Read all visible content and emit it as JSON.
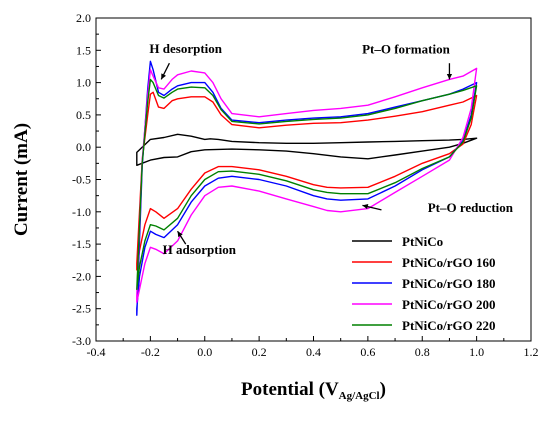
{
  "chart_data": {
    "type": "line",
    "xlabel": "Potential (V",
    "xlabel_sub": "Ag/AgCl",
    "xlabel_close": ")",
    "ylabel": "Current (mA)",
    "xlim": [
      -0.4,
      1.2
    ],
    "ylim": [
      -3.0,
      2.0
    ],
    "x_ticks": [
      "-0.4",
      "-0.2",
      "0.0",
      "0.2",
      "0.4",
      "0.6",
      "0.8",
      "1.0",
      "1.2"
    ],
    "y_ticks": [
      "2.0",
      "1.5",
      "1.0",
      "0.5",
      "0.0",
      "-0.5",
      "-1.0",
      "-1.5",
      "-2.0",
      "-2.5",
      "-3.0"
    ],
    "grid": false,
    "legend_position": "bottom-right",
    "annotations": [
      {
        "text": "H desorption",
        "x": -0.07,
        "y": 1.46
      },
      {
        "text": "Pt–O formation",
        "x": 0.74,
        "y": 1.45
      },
      {
        "text": "Pt–O reduction",
        "x": 0.82,
        "y": -1.0
      },
      {
        "text": "H adsorption",
        "x": -0.02,
        "y": -1.65
      }
    ],
    "series": [
      {
        "name": "PtNiCo",
        "color": "#000000",
        "anodic": {
          "x": [
            -0.25,
            -0.2,
            -0.15,
            -0.1,
            -0.05,
            0.0,
            0.02,
            0.05,
            0.1,
            0.2,
            0.3,
            0.4,
            0.5,
            0.6,
            0.7,
            0.8,
            0.9,
            0.95,
            1.0
          ],
          "y": [
            -0.08,
            0.12,
            0.15,
            0.2,
            0.17,
            0.12,
            0.13,
            0.12,
            0.09,
            0.07,
            0.06,
            0.06,
            0.07,
            0.08,
            0.09,
            0.1,
            0.11,
            0.12,
            0.14
          ]
        },
        "cathodic": {
          "x": [
            1.0,
            0.95,
            0.9,
            0.8,
            0.7,
            0.6,
            0.5,
            0.4,
            0.3,
            0.2,
            0.1,
            0.0,
            -0.05,
            -0.1,
            -0.15,
            -0.2,
            -0.25
          ],
          "y": [
            0.14,
            0.06,
            0.0,
            -0.06,
            -0.12,
            -0.18,
            -0.15,
            -0.1,
            -0.06,
            -0.04,
            -0.03,
            -0.04,
            -0.07,
            -0.15,
            -0.16,
            -0.2,
            -0.28
          ]
        }
      },
      {
        "name": "PtNiCo/rGO 160",
        "color": "#ff0000",
        "anodic": {
          "x": [
            -0.25,
            -0.23,
            -0.21,
            -0.2,
            -0.19,
            -0.17,
            -0.15,
            -0.12,
            -0.1,
            -0.05,
            0.0,
            0.03,
            0.06,
            0.1,
            0.2,
            0.3,
            0.4,
            0.5,
            0.6,
            0.7,
            0.8,
            0.9,
            0.95,
            1.0
          ],
          "y": [
            -1.8,
            -0.2,
            0.5,
            0.82,
            0.85,
            0.62,
            0.6,
            0.72,
            0.75,
            0.78,
            0.78,
            0.7,
            0.5,
            0.35,
            0.3,
            0.34,
            0.37,
            0.38,
            0.42,
            0.48,
            0.55,
            0.65,
            0.7,
            0.8
          ]
        },
        "cathodic": {
          "x": [
            1.0,
            0.98,
            0.95,
            0.9,
            0.8,
            0.7,
            0.6,
            0.5,
            0.45,
            0.4,
            0.3,
            0.2,
            0.1,
            0.05,
            0.0,
            -0.05,
            -0.1,
            -0.15,
            -0.18,
            -0.2,
            -0.22,
            -0.24,
            -0.25
          ],
          "y": [
            0.8,
            0.35,
            0.05,
            -0.1,
            -0.25,
            -0.45,
            -0.62,
            -0.63,
            -0.62,
            -0.58,
            -0.45,
            -0.35,
            -0.3,
            -0.3,
            -0.4,
            -0.65,
            -0.95,
            -1.1,
            -1.0,
            -0.95,
            -1.2,
            -1.6,
            -1.9
          ]
        }
      },
      {
        "name": "PtNiCo/rGO 180",
        "color": "#0000ff",
        "anodic": {
          "x": [
            -0.25,
            -0.23,
            -0.21,
            -0.2,
            -0.19,
            -0.17,
            -0.15,
            -0.12,
            -0.1,
            -0.05,
            0.0,
            0.03,
            0.06,
            0.1,
            0.2,
            0.3,
            0.4,
            0.5,
            0.6,
            0.7,
            0.8,
            0.9,
            0.95,
            1.0
          ],
          "y": [
            -2.6,
            -0.3,
            0.9,
            1.33,
            1.2,
            0.85,
            0.8,
            0.9,
            0.95,
            1.0,
            1.0,
            0.85,
            0.6,
            0.42,
            0.38,
            0.42,
            0.45,
            0.47,
            0.52,
            0.62,
            0.72,
            0.82,
            0.9,
            1.0
          ]
        },
        "cathodic": {
          "x": [
            1.0,
            0.98,
            0.95,
            0.9,
            0.8,
            0.7,
            0.6,
            0.5,
            0.45,
            0.4,
            0.3,
            0.2,
            0.1,
            0.05,
            0.0,
            -0.05,
            -0.1,
            -0.15,
            -0.18,
            -0.2,
            -0.22,
            -0.24,
            -0.25
          ],
          "y": [
            1.0,
            0.5,
            0.1,
            -0.15,
            -0.35,
            -0.6,
            -0.8,
            -0.82,
            -0.8,
            -0.75,
            -0.6,
            -0.5,
            -0.45,
            -0.48,
            -0.6,
            -0.85,
            -1.2,
            -1.4,
            -1.35,
            -1.3,
            -1.55,
            -2.0,
            -2.5
          ]
        }
      },
      {
        "name": "PtNiCo/rGO 200",
        "color": "#ff00ff",
        "anodic": {
          "x": [
            -0.25,
            -0.23,
            -0.21,
            -0.2,
            -0.19,
            -0.17,
            -0.15,
            -0.12,
            -0.1,
            -0.05,
            0.0,
            0.03,
            0.06,
            0.1,
            0.2,
            0.3,
            0.4,
            0.5,
            0.6,
            0.7,
            0.8,
            0.9,
            0.95,
            1.0
          ],
          "y": [
            -2.3,
            -0.2,
            0.8,
            1.2,
            1.1,
            0.92,
            0.9,
            1.05,
            1.12,
            1.18,
            1.15,
            1.0,
            0.75,
            0.52,
            0.47,
            0.52,
            0.57,
            0.6,
            0.65,
            0.78,
            0.92,
            1.05,
            1.1,
            1.22
          ]
        },
        "cathodic": {
          "x": [
            1.0,
            0.98,
            0.95,
            0.9,
            0.8,
            0.7,
            0.6,
            0.5,
            0.45,
            0.4,
            0.3,
            0.2,
            0.1,
            0.05,
            0.0,
            -0.05,
            -0.1,
            -0.15,
            -0.18,
            -0.2,
            -0.22,
            -0.24,
            -0.25
          ],
          "y": [
            1.22,
            0.6,
            0.15,
            -0.2,
            -0.45,
            -0.7,
            -0.95,
            -1.0,
            -0.98,
            -0.92,
            -0.8,
            -0.68,
            -0.6,
            -0.62,
            -0.75,
            -1.05,
            -1.45,
            -1.65,
            -1.58,
            -1.55,
            -1.8,
            -2.2,
            -2.4
          ]
        }
      },
      {
        "name": "PtNiCo/rGO 220",
        "color": "#008000",
        "anodic": {
          "x": [
            -0.25,
            -0.23,
            -0.21,
            -0.2,
            -0.19,
            -0.17,
            -0.15,
            -0.12,
            -0.1,
            -0.05,
            0.0,
            0.03,
            0.06,
            0.1,
            0.2,
            0.3,
            0.4,
            0.5,
            0.6,
            0.7,
            0.8,
            0.9,
            0.95,
            1.0
          ],
          "y": [
            -2.2,
            -0.25,
            0.7,
            1.05,
            1.0,
            0.8,
            0.76,
            0.85,
            0.9,
            0.93,
            0.92,
            0.8,
            0.58,
            0.4,
            0.36,
            0.4,
            0.43,
            0.45,
            0.5,
            0.6,
            0.72,
            0.82,
            0.88,
            0.95
          ]
        },
        "cathodic": {
          "x": [
            1.0,
            0.98,
            0.95,
            0.9,
            0.8,
            0.7,
            0.6,
            0.5,
            0.45,
            0.4,
            0.3,
            0.2,
            0.1,
            0.05,
            0.0,
            -0.05,
            -0.1,
            -0.15,
            -0.18,
            -0.2,
            -0.22,
            -0.24,
            -0.25
          ],
          "y": [
            0.95,
            0.45,
            0.08,
            -0.15,
            -0.33,
            -0.55,
            -0.72,
            -0.72,
            -0.7,
            -0.66,
            -0.52,
            -0.42,
            -0.37,
            -0.38,
            -0.5,
            -0.75,
            -1.1,
            -1.28,
            -1.22,
            -1.2,
            -1.45,
            -1.85,
            -2.2
          ]
        }
      }
    ]
  }
}
